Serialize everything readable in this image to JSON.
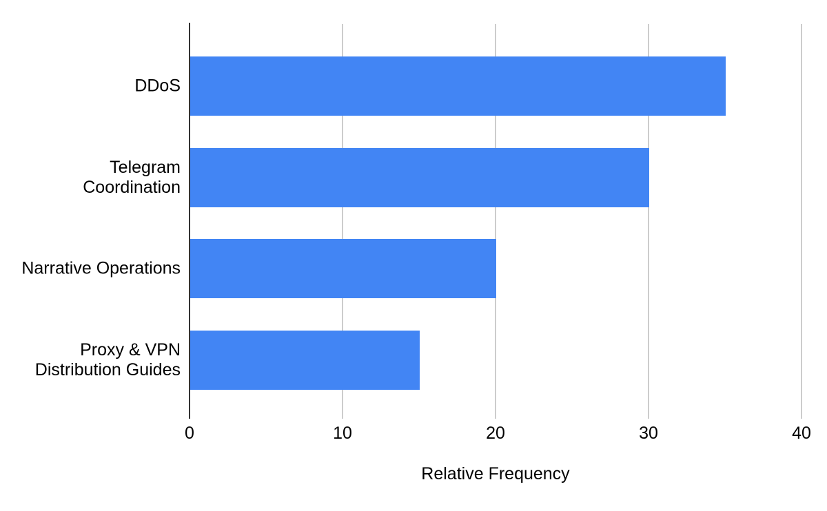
{
  "chart_data": {
    "type": "bar",
    "orientation": "horizontal",
    "title": "",
    "xlabel": "Relative Frequency",
    "ylabel": "",
    "categories": [
      "DDoS",
      "Telegram Coordination",
      "Narrative Operations",
      "Proxy & VPN Distribution Guides"
    ],
    "values": [
      35,
      30,
      20,
      15
    ],
    "x_ticks": [
      "0",
      "10",
      "20",
      "30",
      "40"
    ],
    "x_tick_values": [
      0,
      10,
      20,
      30,
      40
    ],
    "xlim": [
      0,
      40
    ],
    "grid": true,
    "legend": "none",
    "colors": {
      "bar": "#4285f4",
      "gridline": "#cccccc",
      "baseline": "#333333",
      "text": "#000000",
      "background": "#ffffff"
    }
  }
}
